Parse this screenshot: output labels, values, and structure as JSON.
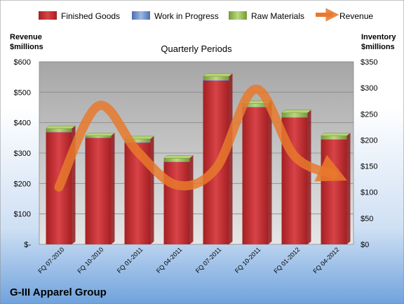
{
  "chart_data": {
    "type": "bar",
    "title": "Quarterly Periods",
    "company": "G-III Apparel Group",
    "categories": [
      "FQ 07-2010",
      "FQ 10-2010",
      "FQ 01-2011",
      "FQ 04-2011",
      "FQ 07-2011",
      "FQ 10-2011",
      "FQ 01-2012",
      "FQ 04-2012"
    ],
    "y_left": {
      "label_line1": "Revenue",
      "label_line2": "$millions",
      "ylim": [
        0,
        600
      ],
      "ticks": [
        0,
        100,
        200,
        300,
        400,
        500,
        600
      ],
      "tick_labels": [
        "$-",
        "$100",
        "$200",
        "$300",
        "$400",
        "$500",
        "$600"
      ]
    },
    "y_right": {
      "label_line1": "Inventory",
      "label_line2": "$millions",
      "ylim": [
        0,
        350
      ],
      "ticks": [
        0,
        50,
        100,
        150,
        200,
        250,
        300,
        350
      ],
      "tick_labels": [
        "$0",
        "$50",
        "$100",
        "$150",
        "$200",
        "$250",
        "$300",
        "$350"
      ]
    },
    "series": [
      {
        "name": "Finished Goods",
        "axis": "right",
        "kind": "stacked-bar",
        "color": "#c0282a",
        "values": [
          215,
          204,
          195,
          158,
          314,
          263,
          243,
          201
        ]
      },
      {
        "name": "Work in Progress",
        "axis": "right",
        "kind": "stacked-bar",
        "color": "#6d8fc7",
        "values": [
          1,
          1,
          1,
          1,
          1,
          1,
          1,
          1
        ]
      },
      {
        "name": "Raw Materials",
        "axis": "right",
        "kind": "stacked-bar",
        "color": "#8fb24a",
        "values": [
          6,
          3,
          6,
          6,
          7,
          6,
          8,
          6
        ]
      },
      {
        "name": "Revenue",
        "axis": "left",
        "kind": "line",
        "color": "#e8792d",
        "values": [
          188,
          455,
          305,
          195,
          250,
          510,
          290,
          230
        ]
      }
    ],
    "legend_position": "top",
    "grid": true
  }
}
